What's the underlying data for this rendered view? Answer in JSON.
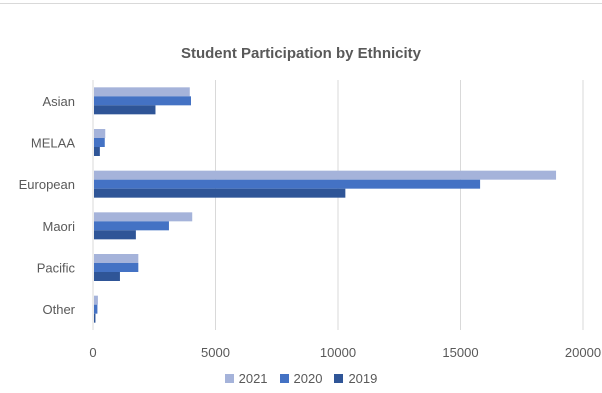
{
  "chart_data": {
    "type": "bar",
    "orientation": "horizontal",
    "title": "Student Participation by Ethnicity",
    "xlabel": "",
    "ylabel": "",
    "categories": [
      "Asian",
      "MELAA",
      "European",
      "Maori",
      "Pacific",
      "Other"
    ],
    "series": [
      {
        "name": "2021",
        "color": "#a5b3da",
        "values": [
          3950,
          500,
          18900,
          4050,
          1850,
          200
        ]
      },
      {
        "name": "2020",
        "color": "#4472c4",
        "values": [
          4000,
          480,
          15800,
          3100,
          1850,
          180
        ]
      },
      {
        "name": "2019",
        "color": "#2f5597",
        "values": [
          2550,
          280,
          10300,
          1750,
          1100,
          100
        ]
      }
    ],
    "xlim": [
      0,
      20000
    ],
    "xticks": [
      "0",
      "5000",
      "10000",
      "15000",
      "20000"
    ],
    "grid": true,
    "legend_position": "bottom"
  }
}
